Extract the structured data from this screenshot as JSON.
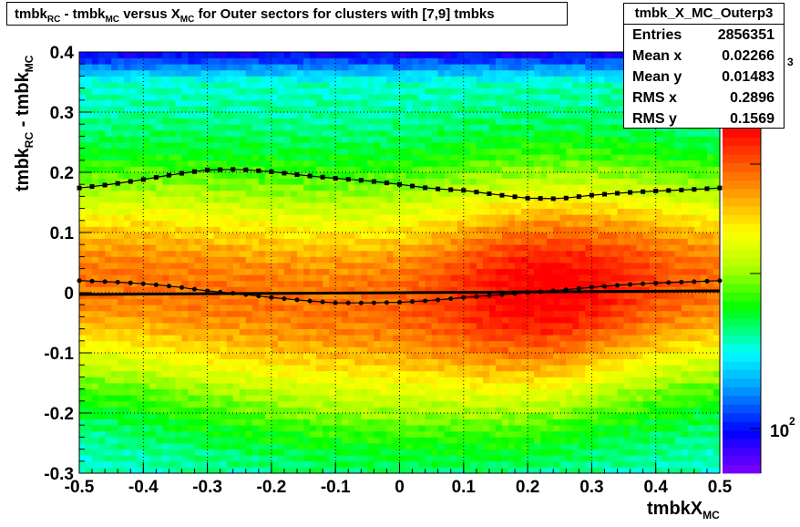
{
  "title": {
    "p1": "tmbk",
    "s1": "RC",
    "p2": " - tmbk",
    "s2": "MC",
    "p3": " versus X",
    "s3": "MC",
    "p4": " for Outer sectors for clusters with [7,9] tmbks"
  },
  "stats": {
    "name": "tmbk_X_MC_Outerp3",
    "rows": [
      {
        "label": "Entries",
        "value": "2856351"
      },
      {
        "label": "Mean x",
        "value": "0.02266"
      },
      {
        "label": "Mean y",
        "value": "0.01483"
      },
      {
        "label": "RMS x",
        "value": "0.2896"
      },
      {
        "label": "RMS y",
        "value": "0.1569"
      }
    ]
  },
  "axes": {
    "x_label": "tmbkX",
    "x_sub": "MC",
    "y_p1": "tmbk",
    "y_s1": "RC",
    "y_p2": " - tmbk",
    "y_s2": "MC"
  },
  "chart_data": {
    "type": "heatmap",
    "xlim": [
      -0.5,
      0.5
    ],
    "ylim": [
      -0.3,
      0.4
    ],
    "x_ticks": [
      "-0.5",
      "-0.4",
      "-0.3",
      "-0.2",
      "-0.1",
      "0",
      "0.1",
      "0.2",
      "0.3",
      "0.4",
      "0.5"
    ],
    "y_ticks": [
      "-0.3",
      "-0.2",
      "-0.1",
      "0",
      "0.1",
      "0.2",
      "0.3",
      "0.4"
    ],
    "grid": true,
    "z_scale": "log",
    "z_labels": {
      "base": "10",
      "exponent_low": "2",
      "exponent_high": "3"
    },
    "mean_profile": {
      "x": [
        -0.5,
        -0.45,
        -0.4,
        -0.35,
        -0.3,
        -0.25,
        -0.2,
        -0.15,
        -0.1,
        -0.05,
        0,
        0.05,
        0.1,
        0.15,
        0.2,
        0.25,
        0.3,
        0.35,
        0.4,
        0.45,
        0.5
      ],
      "y": [
        0.02,
        0.018,
        0.015,
        0.01,
        0.003,
        -0.002,
        -0.008,
        -0.013,
        -0.017,
        -0.017,
        -0.016,
        -0.013,
        -0.008,
        -0.004,
        0.0,
        0.004,
        0.009,
        0.013,
        0.016,
        0.018,
        0.02
      ]
    },
    "rms_profile": {
      "x": [
        -0.5,
        -0.45,
        -0.4,
        -0.35,
        -0.3,
        -0.25,
        -0.2,
        -0.15,
        -0.1,
        -0.05,
        0,
        0.05,
        0.1,
        0.15,
        0.2,
        0.25,
        0.3,
        0.35,
        0.4,
        0.45,
        0.5
      ],
      "y": [
        0.174,
        0.18,
        0.188,
        0.197,
        0.204,
        0.205,
        0.201,
        0.195,
        0.19,
        0.186,
        0.18,
        0.173,
        0.17,
        0.163,
        0.157,
        0.156,
        0.162,
        0.166,
        0.169,
        0.171,
        0.174
      ]
    },
    "fit_line": {
      "x": [
        -0.5,
        0.5
      ],
      "y": [
        -0.003,
        0.003
      ]
    }
  }
}
